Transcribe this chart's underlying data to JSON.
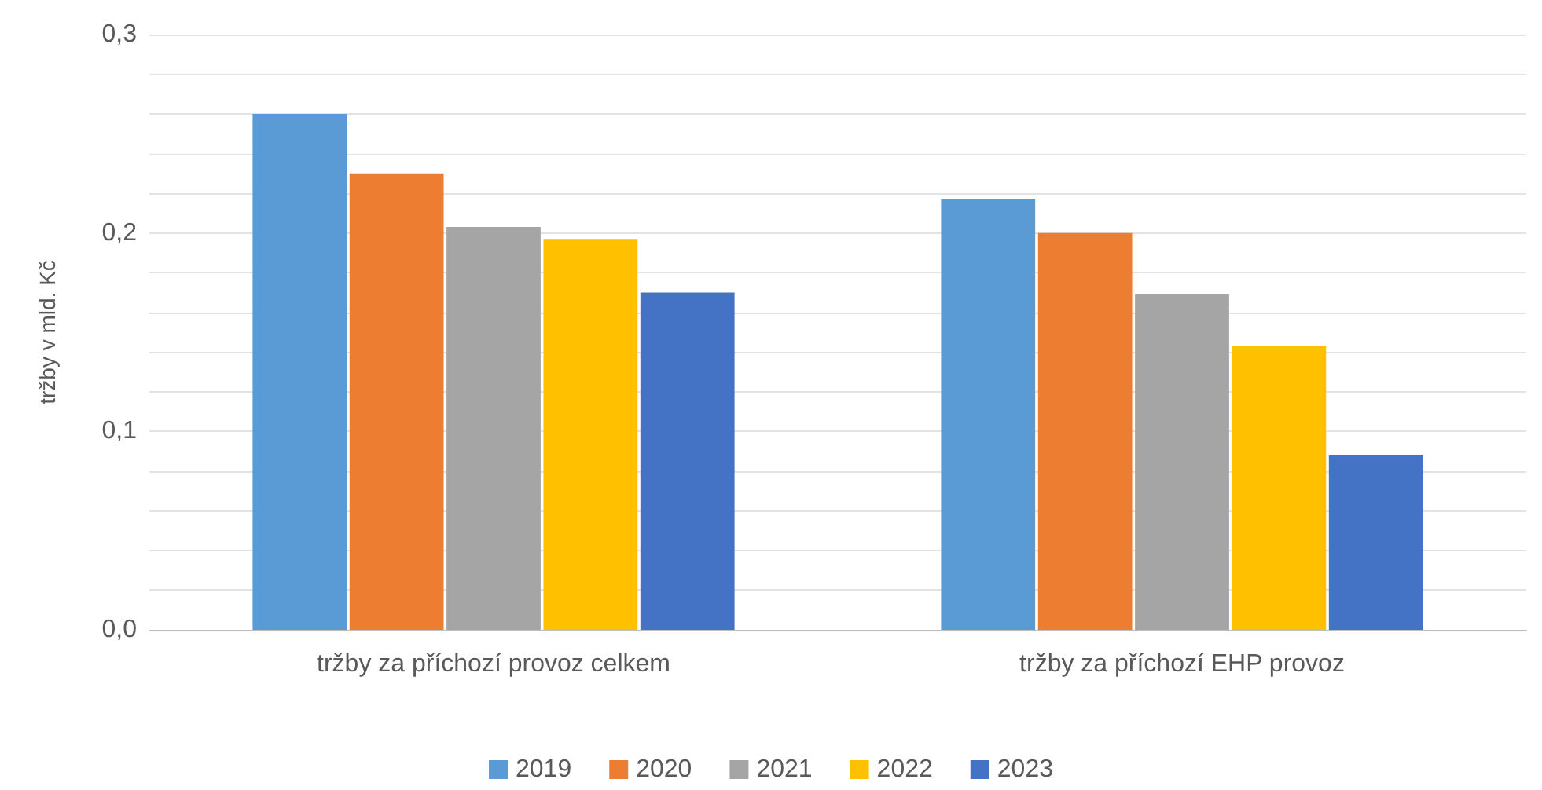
{
  "chart_data": {
    "type": "bar",
    "ylabel": "tržby v mld. Kč",
    "categories": [
      "tržby za příchozí provoz celkem",
      "tržby za příchozí EHP provoz"
    ],
    "series": [
      {
        "name": "2019",
        "color": "#5b9bd5",
        "values": [
          0.26,
          0.217
        ]
      },
      {
        "name": "2020",
        "color": "#ed7d31",
        "values": [
          0.23,
          0.2
        ]
      },
      {
        "name": "2021",
        "color": "#a5a5a5",
        "values": [
          0.203,
          0.169
        ]
      },
      {
        "name": "2022",
        "color": "#ffc000",
        "values": [
          0.197,
          0.143
        ]
      },
      {
        "name": "2023",
        "color": "#4472c4",
        "values": [
          0.17,
          0.088
        ]
      }
    ],
    "ylim": [
      0,
      0.3
    ],
    "yticks": [
      {
        "value": 0,
        "label": "0,0"
      },
      {
        "value": 0.02,
        "label": null
      },
      {
        "value": 0.04,
        "label": null
      },
      {
        "value": 0.06,
        "label": null
      },
      {
        "value": 0.08,
        "label": null
      },
      {
        "value": 0.1,
        "label": "0,1"
      },
      {
        "value": 0.12,
        "label": null
      },
      {
        "value": 0.14,
        "label": null
      },
      {
        "value": 0.16,
        "label": null
      },
      {
        "value": 0.18,
        "label": null
      },
      {
        "value": 0.2,
        "label": "0,2"
      },
      {
        "value": 0.22,
        "label": null
      },
      {
        "value": 0.24,
        "label": null
      },
      {
        "value": 0.26,
        "label": null
      },
      {
        "value": 0.28,
        "label": null
      },
      {
        "value": 0.3,
        "label": "0,3"
      }
    ],
    "grid": "y",
    "legend": "bottom"
  }
}
